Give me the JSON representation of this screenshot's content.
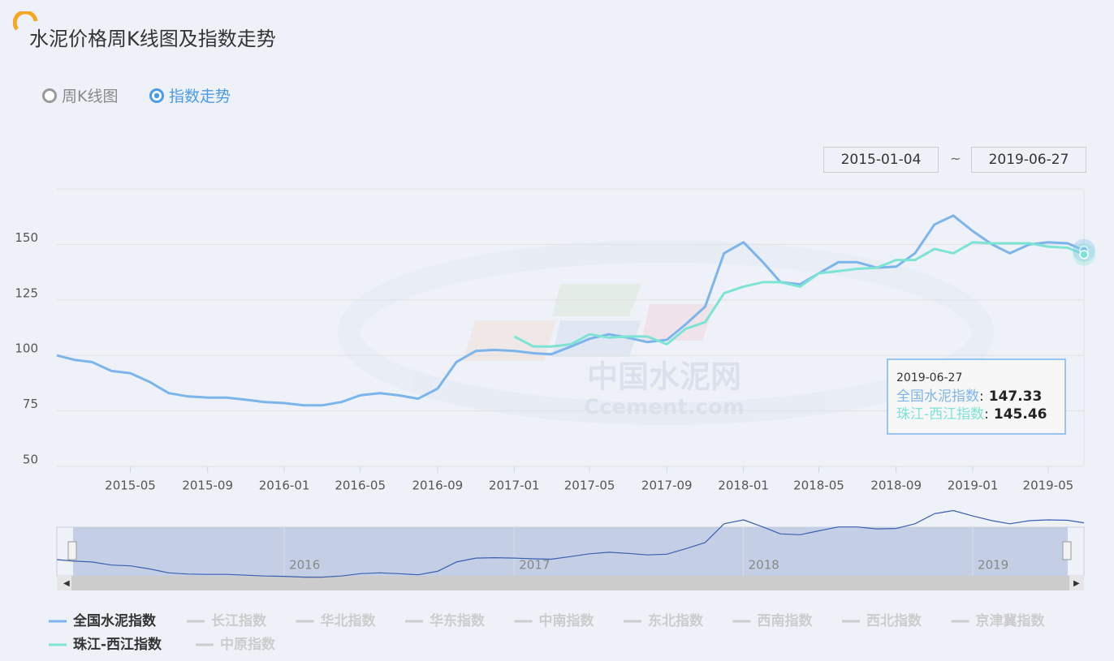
{
  "header": {
    "title": "水泥价格周K线图及指数走势",
    "views": [
      "周K线图",
      "指数走势"
    ],
    "selected_view": 1
  },
  "date_range": {
    "start": "2015-01-04",
    "separator": "~",
    "end": "2019-06-27"
  },
  "watermark": {
    "cn": "中国水泥网",
    "en": "Ccement.com"
  },
  "chart_data": {
    "type": "line",
    "x": [
      "2015-01-04",
      "2015-02-01",
      "2015-03-01",
      "2015-04-01",
      "2015-05-01",
      "2015-06-01",
      "2015-07-01",
      "2015-08-01",
      "2015-09-01",
      "2015-10-01",
      "2015-11-01",
      "2015-12-01",
      "2016-01-01",
      "2016-02-01",
      "2016-03-01",
      "2016-04-01",
      "2016-05-01",
      "2016-06-01",
      "2016-07-01",
      "2016-08-01",
      "2016-09-01",
      "2016-10-01",
      "2016-11-01",
      "2016-12-01",
      "2017-01-01",
      "2017-02-01",
      "2017-03-01",
      "2017-04-01",
      "2017-05-01",
      "2017-06-01",
      "2017-07-01",
      "2017-08-01",
      "2017-09-01",
      "2017-10-01",
      "2017-11-01",
      "2017-12-01",
      "2018-01-01",
      "2018-02-01",
      "2018-03-01",
      "2018-04-01",
      "2018-05-01",
      "2018-06-01",
      "2018-07-01",
      "2018-08-01",
      "2018-09-01",
      "2018-10-01",
      "2018-11-01",
      "2018-12-01",
      "2019-01-01",
      "2019-02-01",
      "2019-03-01",
      "2019-04-01",
      "2019-05-01",
      "2019-06-01",
      "2019-06-27"
    ],
    "series": [
      {
        "name": "全国水泥指数",
        "color": "#7cb5ec",
        "values": [
          100,
          98,
          97,
          93,
          92,
          88,
          83,
          81.5,
          81,
          81,
          80,
          79,
          78.5,
          77.5,
          77.5,
          79,
          82,
          83,
          82,
          80.5,
          85,
          97,
          102,
          102.5,
          102,
          101,
          100.5,
          104,
          107.5,
          109.5,
          108,
          106,
          107,
          114,
          122,
          146,
          151,
          142,
          133,
          132,
          137,
          142,
          142,
          139.5,
          140,
          146,
          159,
          163,
          156,
          150,
          146,
          150,
          151,
          150.5,
          147.33
        ]
      },
      {
        "name": "珠江-西江指数",
        "color": "#7de3d5",
        "values": [
          null,
          null,
          null,
          null,
          null,
          null,
          null,
          null,
          null,
          null,
          null,
          null,
          null,
          null,
          null,
          null,
          null,
          null,
          null,
          null,
          null,
          null,
          null,
          null,
          108.5,
          104,
          104,
          105,
          109.5,
          108,
          108.5,
          108.5,
          105,
          112,
          115,
          128,
          131,
          133,
          133,
          131,
          137,
          138,
          139,
          139.5,
          143,
          143,
          148,
          146,
          151,
          150.5,
          150.5,
          150.5,
          149,
          148.5,
          145.46
        ]
      }
    ],
    "hidden_series": [
      "长江指数",
      "华北指数",
      "华东指数",
      "中南指数",
      "东北指数",
      "西南指数",
      "西北指数",
      "京津冀指数",
      "中原指数"
    ],
    "hidden_color": "#cccccc",
    "xlim": [
      "2015-01-04",
      "2019-06-27"
    ],
    "xticks": [
      {
        "value": "2015-05-01",
        "label": "2015-05"
      },
      {
        "value": "2015-09-01",
        "label": "2015-09"
      },
      {
        "value": "2016-01-01",
        "label": "2016-01"
      },
      {
        "value": "2016-05-01",
        "label": "2016-05"
      },
      {
        "value": "2016-09-01",
        "label": "2016-09"
      },
      {
        "value": "2017-01-01",
        "label": "2017-01"
      },
      {
        "value": "2017-05-01",
        "label": "2017-05"
      },
      {
        "value": "2017-09-01",
        "label": "2017-09"
      },
      {
        "value": "2018-01-01",
        "label": "2018-01"
      },
      {
        "value": "2018-05-01",
        "label": "2018-05"
      },
      {
        "value": "2018-09-01",
        "label": "2018-09"
      },
      {
        "value": "2019-01-01",
        "label": "2019-01"
      },
      {
        "value": "2019-05-01",
        "label": "2019-05"
      }
    ],
    "ylim": [
      50,
      175
    ],
    "yticks": [
      50,
      75,
      100,
      125,
      150
    ],
    "grid": true,
    "navigator_ticks": [
      {
        "value": "2016-01-01",
        "label": "2016"
      },
      {
        "value": "2017-01-01",
        "label": "2017"
      },
      {
        "value": "2018-01-01",
        "label": "2018"
      },
      {
        "value": "2019-01-01",
        "label": "2019"
      }
    ],
    "tooltip": {
      "index": 54,
      "separator": ":"
    }
  }
}
